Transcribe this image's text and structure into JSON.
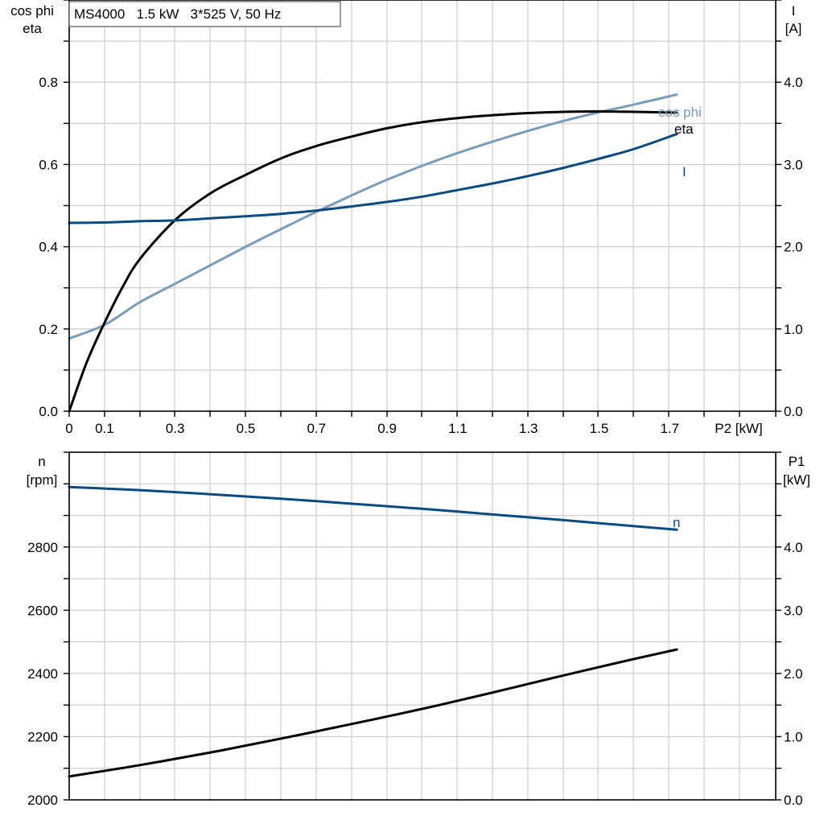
{
  "title_box": "MS4000   1.5 kW   3*525 V, 50 Hz",
  "colors": {
    "cos_phi": "#7a9cb8",
    "eta": "#000000",
    "I": "#0a4a80",
    "n": "#0a4a80",
    "P1": "#000000",
    "grid": "#d0d0d0"
  },
  "chart_data": [
    {
      "type": "line",
      "x_label": "P2 [kW]",
      "x_ticks": [
        "0",
        "0.1",
        "0.3",
        "0.5",
        "0.7",
        "0.9",
        "1.1",
        "1.3",
        "1.5",
        "1.7"
      ],
      "x_tick_values": [
        0,
        0.1,
        0.3,
        0.5,
        0.7,
        0.9,
        1.1,
        1.3,
        1.5,
        1.7
      ],
      "xlim": [
        0,
        2.0
      ],
      "y_left_label": [
        "cos phi",
        "eta"
      ],
      "y_left_ticks": [
        "0.0",
        "0.2",
        "0.4",
        "0.6",
        "0.8"
      ],
      "y_left_lim": [
        0,
        1.0
      ],
      "y_right_label": [
        "I",
        "[A]"
      ],
      "y_right_ticks": [
        "0.0",
        "1.0",
        "2.0",
        "3.0",
        "4.0"
      ],
      "y_right_lim": [
        0,
        5.0
      ],
      "series": [
        {
          "name": "cos phi",
          "axis": "left",
          "x": [
            0,
            0.1,
            0.2,
            0.3,
            0.4,
            0.5,
            0.6,
            0.7,
            0.8,
            0.9,
            1.0,
            1.1,
            1.2,
            1.3,
            1.4,
            1.5,
            1.6,
            1.72
          ],
          "y": [
            0.177,
            0.21,
            0.265,
            0.31,
            0.355,
            0.4,
            0.443,
            0.485,
            0.525,
            0.563,
            0.597,
            0.628,
            0.656,
            0.682,
            0.706,
            0.727,
            0.746,
            0.77
          ]
        },
        {
          "name": "eta",
          "axis": "left",
          "x": [
            0,
            0.05,
            0.1,
            0.15,
            0.2,
            0.3,
            0.4,
            0.5,
            0.6,
            0.7,
            0.8,
            0.9,
            1.0,
            1.1,
            1.2,
            1.3,
            1.4,
            1.5,
            1.6,
            1.72
          ],
          "y": [
            0.0,
            0.12,
            0.215,
            0.3,
            0.37,
            0.465,
            0.53,
            0.575,
            0.615,
            0.645,
            0.668,
            0.688,
            0.703,
            0.713,
            0.72,
            0.725,
            0.728,
            0.729,
            0.728,
            0.726
          ]
        },
        {
          "name": "I",
          "axis": "right",
          "x": [
            0,
            0.1,
            0.2,
            0.3,
            0.4,
            0.5,
            0.6,
            0.7,
            0.8,
            0.9,
            1.0,
            1.1,
            1.2,
            1.3,
            1.4,
            1.5,
            1.6,
            1.72
          ],
          "y": [
            2.29,
            2.295,
            2.31,
            2.32,
            2.345,
            2.37,
            2.4,
            2.44,
            2.49,
            2.545,
            2.61,
            2.69,
            2.77,
            2.86,
            2.96,
            3.07,
            3.19,
            3.37
          ]
        }
      ]
    },
    {
      "type": "line",
      "x_label": "P2 [kW]",
      "xlim": [
        0,
        2.0
      ],
      "y_left_label": [
        "n",
        "[rpm]"
      ],
      "y_left_ticks": [
        "2000",
        "2200",
        "2400",
        "2600",
        "2800"
      ],
      "y_left_lim": [
        2000,
        3100
      ],
      "y_right_label": [
        "P1",
        "[kW]"
      ],
      "y_right_ticks": [
        "0.0",
        "1.0",
        "2.0",
        "3.0",
        "4.0"
      ],
      "y_right_lim": [
        0,
        5.5
      ],
      "series": [
        {
          "name": "n",
          "axis": "left",
          "x": [
            0,
            0.2,
            0.4,
            0.6,
            0.8,
            1.0,
            1.2,
            1.4,
            1.6,
            1.72
          ],
          "y": [
            2990,
            2980,
            2967,
            2953,
            2937,
            2921,
            2903,
            2885,
            2866,
            2855
          ]
        },
        {
          "name": "P1",
          "axis": "right",
          "x": [
            0,
            0.2,
            0.4,
            0.6,
            0.8,
            1.0,
            1.2,
            1.4,
            1.6,
            1.72
          ],
          "y": [
            0.37,
            0.55,
            0.75,
            0.97,
            1.2,
            1.44,
            1.7,
            1.97,
            2.23,
            2.38
          ]
        }
      ]
    }
  ]
}
